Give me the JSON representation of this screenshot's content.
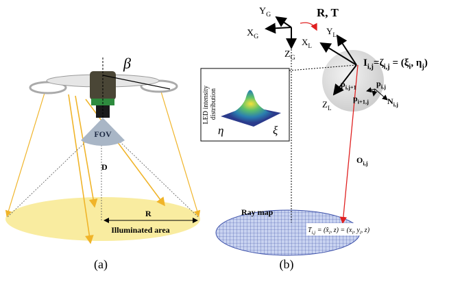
{
  "panel_a": {
    "beta": "β",
    "fov": "FOV",
    "distance": "D",
    "radius": "R",
    "area": "Illuminated area",
    "caption": "(a)"
  },
  "panel_b": {
    "global_y": [
      {
        "text": "Y"
      },
      {
        "sub": "G"
      }
    ],
    "global_x": [
      {
        "text": "X"
      },
      {
        "sub": "G"
      }
    ],
    "global_z": [
      {
        "text": "Z"
      },
      {
        "sub": "G"
      }
    ],
    "transform": "R, T",
    "led_y": [
      {
        "text": "Y"
      },
      {
        "sub": "L"
      }
    ],
    "led_x": [
      {
        "text": "X"
      },
      {
        "sub": "L"
      }
    ],
    "led_z": [
      {
        "text": "Z"
      },
      {
        "sub": "L"
      }
    ],
    "inset_axis": [
      "LED intensity",
      "distribution"
    ],
    "inset_eta": "η",
    "inset_xi": "ξ",
    "intensity": [
      {
        "text": "I"
      },
      {
        "sub": "i,j"
      },
      {
        "text": "=ζ"
      },
      {
        "sub": "i,j"
      },
      {
        "text": " = (ξ"
      },
      {
        "sub": "i"
      },
      {
        "text": ", η"
      },
      {
        "sub": "j"
      },
      {
        "text": ")"
      }
    ],
    "p_left": [
      {
        "text": "p"
      },
      {
        "sub": "i,j+1"
      }
    ],
    "p_right": [
      {
        "text": "p"
      },
      {
        "sub": "i,j"
      }
    ],
    "p_below": [
      {
        "text": "p"
      },
      {
        "sub": "i+1,j"
      }
    ],
    "normal": [
      {
        "text": "N"
      },
      {
        "sub": "i,j"
      }
    ],
    "ray": [
      {
        "text": "O"
      },
      {
        "sub": "i,j"
      }
    ],
    "ray_map": "Ray map",
    "target": [
      {
        "text": "T"
      },
      {
        "sub": "i,j"
      },
      {
        "text": " = (x̂"
      },
      {
        "sub": "i"
      },
      {
        "text": ", z) = (x"
      },
      {
        "sub": "i"
      },
      {
        "text": ", y"
      },
      {
        "sub": "i"
      },
      {
        "text": ", z)"
      }
    ],
    "caption": "(b)"
  }
}
